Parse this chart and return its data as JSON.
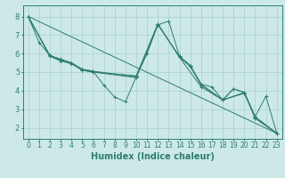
{
  "bg_color": "#cce9e7",
  "line_color": "#2e7d72",
  "grid_color": "#aacfcc",
  "xlabel": "Humidex (Indice chaleur)",
  "xlabel_fontsize": 7,
  "tick_fontsize": 6,
  "xlim": [
    -0.5,
    23.5
  ],
  "ylim": [
    1.4,
    8.6
  ],
  "yticks": [
    2,
    3,
    4,
    5,
    6,
    7,
    8
  ],
  "xticks": [
    0,
    1,
    2,
    3,
    4,
    5,
    6,
    7,
    8,
    9,
    10,
    11,
    12,
    13,
    14,
    15,
    16,
    17,
    18,
    19,
    20,
    21,
    22,
    23
  ],
  "lines": [
    {
      "x": [
        0,
        1,
        2,
        3,
        4,
        5,
        6,
        7,
        8,
        9,
        10,
        11,
        12,
        13,
        14,
        15,
        16,
        17,
        18,
        19,
        20,
        21,
        22,
        23
      ],
      "y": [
        8.0,
        6.6,
        5.9,
        5.65,
        5.5,
        5.15,
        5.05,
        4.3,
        3.65,
        3.4,
        4.75,
        6.0,
        7.55,
        7.75,
        5.85,
        5.35,
        4.35,
        4.2,
        3.5,
        4.1,
        3.9,
        2.6,
        3.7,
        1.7
      ]
    },
    {
      "x": [
        0,
        23
      ],
      "y": [
        8.0,
        1.7
      ]
    },
    {
      "x": [
        0,
        2,
        3,
        4,
        5,
        6,
        10,
        12,
        14,
        15,
        16,
        18,
        19,
        20,
        21,
        23
      ],
      "y": [
        8.0,
        5.9,
        5.65,
        5.5,
        5.15,
        5.05,
        4.75,
        7.55,
        5.85,
        5.35,
        4.35,
        3.5,
        4.1,
        3.9,
        2.6,
        1.7
      ]
    },
    {
      "x": [
        0,
        2,
        3,
        4,
        5,
        6,
        10,
        12,
        14,
        15,
        16,
        18,
        20,
        21,
        23
      ],
      "y": [
        8.0,
        5.85,
        5.6,
        5.45,
        5.1,
        5.0,
        4.7,
        7.6,
        5.8,
        5.3,
        4.3,
        3.5,
        3.85,
        2.55,
        1.7
      ]
    },
    {
      "x": [
        0,
        2,
        3,
        4,
        5,
        6,
        10,
        12,
        14,
        16,
        18,
        20,
        21,
        23
      ],
      "y": [
        8.0,
        5.9,
        5.7,
        5.5,
        5.1,
        5.0,
        4.8,
        7.6,
        5.8,
        4.2,
        3.5,
        3.9,
        2.5,
        1.7
      ]
    }
  ]
}
